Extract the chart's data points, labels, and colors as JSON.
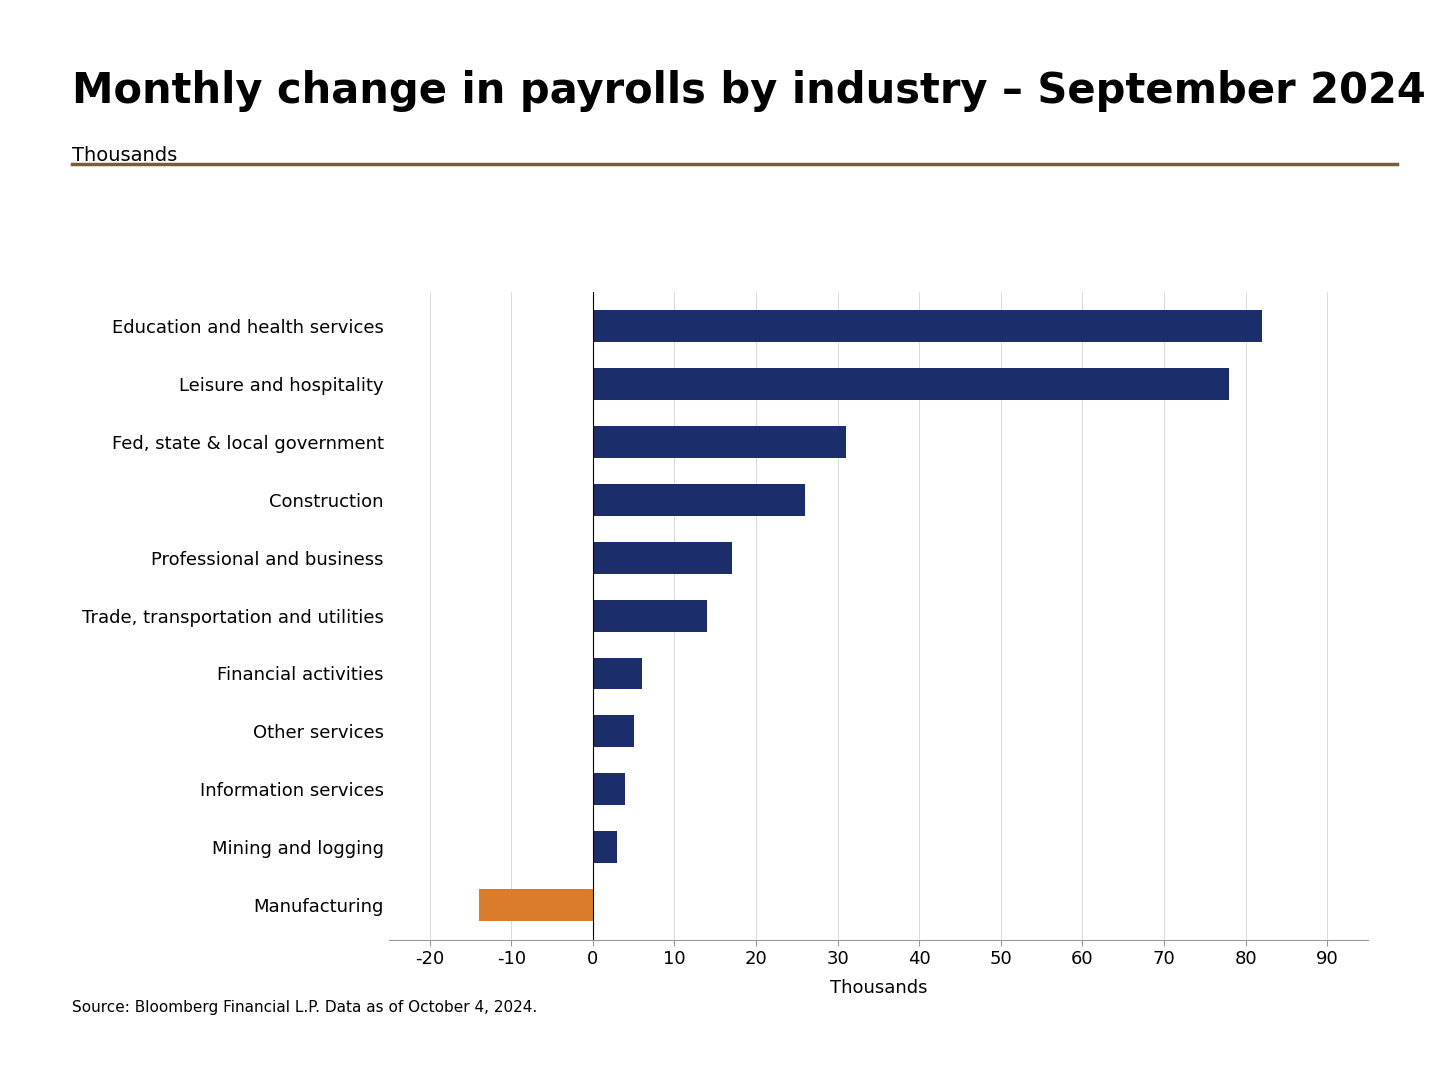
{
  "title": "Monthly change in payrolls by industry – September 2024",
  "subtitle": "Thousands",
  "xlabel": "Thousands",
  "source": "Source: Bloomberg Financial L.P. Data as of October 4, 2024.",
  "categories": [
    "Manufacturing",
    "Mining and logging",
    "Information services",
    "Other services",
    "Financial activities",
    "Trade, transportation and utilities",
    "Professional and business",
    "Construction",
    "Fed, state & local government",
    "Leisure and hospitality",
    "Education and health services"
  ],
  "values": [
    -14,
    3,
    4,
    5,
    6,
    14,
    17,
    26,
    31,
    78,
    82
  ],
  "bar_colors": [
    "#D97C2B",
    "#1B2D6B",
    "#1B2D6B",
    "#1B2D6B",
    "#1B2D6B",
    "#1B2D6B",
    "#1B2D6B",
    "#1B2D6B",
    "#1B2D6B",
    "#1B2D6B",
    "#1B2D6B"
  ],
  "xlim": [
    -25,
    95
  ],
  "xticks": [
    -20,
    -10,
    0,
    10,
    20,
    30,
    40,
    50,
    60,
    70,
    80,
    90
  ],
  "title_fontsize": 30,
  "subtitle_fontsize": 14,
  "label_fontsize": 13,
  "tick_fontsize": 13,
  "source_fontsize": 11,
  "background_color": "#FFFFFF",
  "separator_color": "#7B5C3A",
  "bar_height": 0.55
}
